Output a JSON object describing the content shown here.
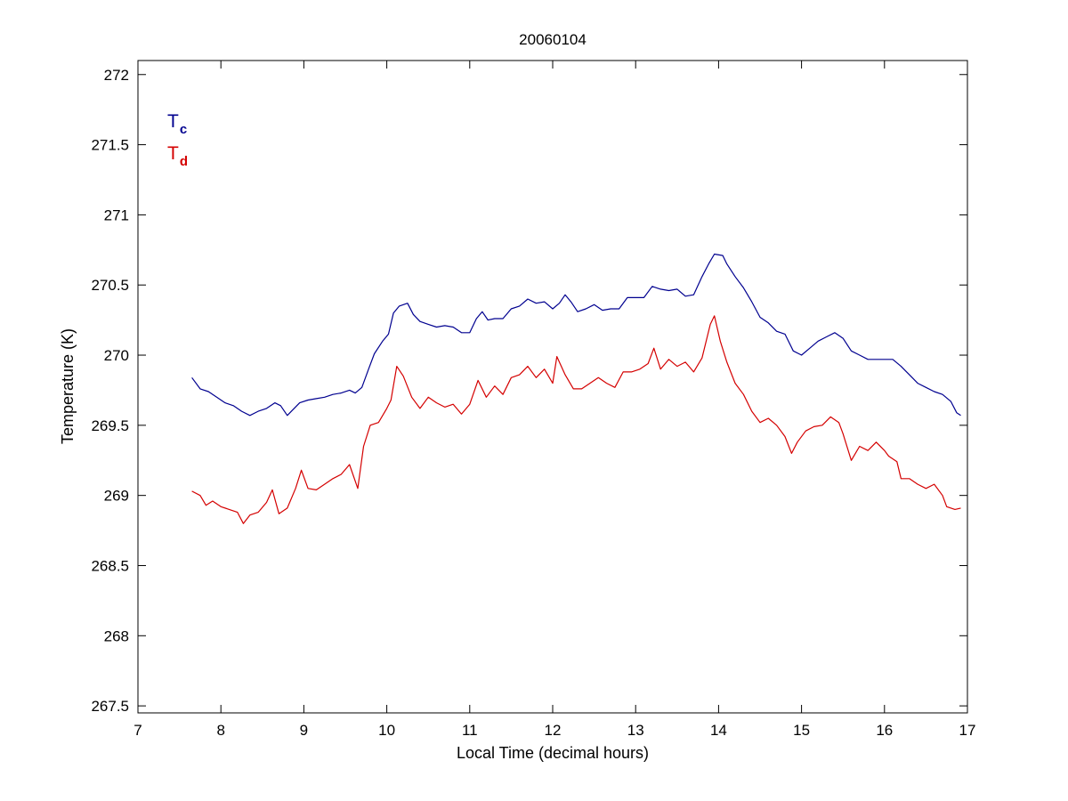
{
  "chart_data": {
    "type": "line",
    "title": "20060104",
    "xlabel": "Local Time (decimal hours)",
    "ylabel": "Temperature (K)",
    "xlim": [
      7,
      17
    ],
    "ylim": [
      267.45,
      272.1
    ],
    "xticks": [
      7,
      8,
      9,
      10,
      11,
      12,
      13,
      14,
      15,
      16,
      17
    ],
    "yticks": [
      267.5,
      268,
      268.5,
      269,
      269.5,
      270,
      270.5,
      271,
      271.5,
      272
    ],
    "grid": false,
    "legend_position": "top-left",
    "series": [
      {
        "name": "T",
        "subscript": "c",
        "color": "#00008f",
        "points": [
          [
            7.65,
            269.84
          ],
          [
            7.75,
            269.76
          ],
          [
            7.85,
            269.74
          ],
          [
            7.95,
            269.7
          ],
          [
            8.05,
            269.66
          ],
          [
            8.15,
            269.64
          ],
          [
            8.25,
            269.6
          ],
          [
            8.35,
            269.57
          ],
          [
            8.45,
            269.6
          ],
          [
            8.55,
            269.62
          ],
          [
            8.65,
            269.66
          ],
          [
            8.72,
            269.64
          ],
          [
            8.8,
            269.57
          ],
          [
            8.85,
            269.6
          ],
          [
            8.95,
            269.66
          ],
          [
            9.05,
            269.68
          ],
          [
            9.15,
            269.69
          ],
          [
            9.25,
            269.7
          ],
          [
            9.35,
            269.72
          ],
          [
            9.45,
            269.73
          ],
          [
            9.55,
            269.75
          ],
          [
            9.62,
            269.73
          ],
          [
            9.7,
            269.77
          ],
          [
            9.78,
            269.9
          ],
          [
            9.85,
            270.01
          ],
          [
            9.95,
            270.1
          ],
          [
            10.02,
            270.15
          ],
          [
            10.08,
            270.3
          ],
          [
            10.15,
            270.35
          ],
          [
            10.25,
            270.37
          ],
          [
            10.32,
            270.29
          ],
          [
            10.4,
            270.24
          ],
          [
            10.5,
            270.22
          ],
          [
            10.6,
            270.2
          ],
          [
            10.7,
            270.21
          ],
          [
            10.8,
            270.2
          ],
          [
            10.9,
            270.16
          ],
          [
            11.0,
            270.16
          ],
          [
            11.08,
            270.26
          ],
          [
            11.15,
            270.31
          ],
          [
            11.22,
            270.25
          ],
          [
            11.3,
            270.26
          ],
          [
            11.4,
            270.26
          ],
          [
            11.5,
            270.33
          ],
          [
            11.6,
            270.35
          ],
          [
            11.7,
            270.4
          ],
          [
            11.8,
            270.37
          ],
          [
            11.9,
            270.38
          ],
          [
            12.0,
            270.33
          ],
          [
            12.08,
            270.37
          ],
          [
            12.15,
            270.43
          ],
          [
            12.22,
            270.38
          ],
          [
            12.3,
            270.31
          ],
          [
            12.4,
            270.33
          ],
          [
            12.5,
            270.36
          ],
          [
            12.6,
            270.32
          ],
          [
            12.7,
            270.33
          ],
          [
            12.8,
            270.33
          ],
          [
            12.9,
            270.41
          ],
          [
            13.0,
            270.41
          ],
          [
            13.1,
            270.41
          ],
          [
            13.2,
            270.49
          ],
          [
            13.3,
            270.47
          ],
          [
            13.4,
            270.46
          ],
          [
            13.5,
            270.47
          ],
          [
            13.6,
            270.42
          ],
          [
            13.7,
            270.43
          ],
          [
            13.8,
            270.56
          ],
          [
            13.88,
            270.65
          ],
          [
            13.95,
            270.72
          ],
          [
            14.05,
            270.71
          ],
          [
            14.1,
            270.65
          ],
          [
            14.2,
            270.56
          ],
          [
            14.3,
            270.48
          ],
          [
            14.4,
            270.38
          ],
          [
            14.5,
            270.27
          ],
          [
            14.6,
            270.23
          ],
          [
            14.7,
            270.17
          ],
          [
            14.8,
            270.15
          ],
          [
            14.9,
            270.03
          ],
          [
            15.0,
            270.0
          ],
          [
            15.1,
            270.05
          ],
          [
            15.2,
            270.1
          ],
          [
            15.3,
            270.13
          ],
          [
            15.4,
            270.16
          ],
          [
            15.5,
            270.12
          ],
          [
            15.6,
            270.03
          ],
          [
            15.7,
            270.0
          ],
          [
            15.8,
            269.97
          ],
          [
            15.9,
            269.97
          ],
          [
            16.0,
            269.97
          ],
          [
            16.1,
            269.97
          ],
          [
            16.2,
            269.92
          ],
          [
            16.3,
            269.86
          ],
          [
            16.4,
            269.8
          ],
          [
            16.5,
            269.77
          ],
          [
            16.6,
            269.74
          ],
          [
            16.7,
            269.72
          ],
          [
            16.8,
            269.67
          ],
          [
            16.87,
            269.59
          ],
          [
            16.92,
            269.57
          ]
        ]
      },
      {
        "name": "T",
        "subscript": "d",
        "color": "#d40000",
        "points": [
          [
            7.65,
            269.03
          ],
          [
            7.75,
            269.0
          ],
          [
            7.82,
            268.93
          ],
          [
            7.9,
            268.96
          ],
          [
            8.0,
            268.92
          ],
          [
            8.1,
            268.9
          ],
          [
            8.2,
            268.88
          ],
          [
            8.27,
            268.8
          ],
          [
            8.35,
            268.86
          ],
          [
            8.45,
            268.88
          ],
          [
            8.55,
            268.95
          ],
          [
            8.62,
            269.04
          ],
          [
            8.7,
            268.87
          ],
          [
            8.8,
            268.91
          ],
          [
            8.9,
            269.05
          ],
          [
            8.97,
            269.18
          ],
          [
            9.05,
            269.05
          ],
          [
            9.15,
            269.04
          ],
          [
            9.25,
            269.08
          ],
          [
            9.35,
            269.12
          ],
          [
            9.45,
            269.15
          ],
          [
            9.55,
            269.22
          ],
          [
            9.65,
            269.05
          ],
          [
            9.72,
            269.35
          ],
          [
            9.8,
            269.5
          ],
          [
            9.9,
            269.52
          ],
          [
            10.0,
            269.62
          ],
          [
            10.05,
            269.68
          ],
          [
            10.12,
            269.92
          ],
          [
            10.2,
            269.85
          ],
          [
            10.3,
            269.7
          ],
          [
            10.4,
            269.62
          ],
          [
            10.5,
            269.7
          ],
          [
            10.6,
            269.66
          ],
          [
            10.7,
            269.63
          ],
          [
            10.8,
            269.65
          ],
          [
            10.9,
            269.58
          ],
          [
            11.0,
            269.65
          ],
          [
            11.1,
            269.82
          ],
          [
            11.2,
            269.7
          ],
          [
            11.3,
            269.78
          ],
          [
            11.4,
            269.72
          ],
          [
            11.5,
            269.84
          ],
          [
            11.6,
            269.86
          ],
          [
            11.7,
            269.92
          ],
          [
            11.8,
            269.84
          ],
          [
            11.9,
            269.9
          ],
          [
            12.0,
            269.8
          ],
          [
            12.05,
            269.99
          ],
          [
            12.15,
            269.86
          ],
          [
            12.25,
            269.76
          ],
          [
            12.35,
            269.76
          ],
          [
            12.45,
            269.8
          ],
          [
            12.55,
            269.84
          ],
          [
            12.65,
            269.8
          ],
          [
            12.75,
            269.77
          ],
          [
            12.85,
            269.88
          ],
          [
            12.95,
            269.88
          ],
          [
            13.05,
            269.9
          ],
          [
            13.15,
            269.94
          ],
          [
            13.22,
            270.05
          ],
          [
            13.3,
            269.9
          ],
          [
            13.4,
            269.97
          ],
          [
            13.5,
            269.92
          ],
          [
            13.6,
            269.95
          ],
          [
            13.7,
            269.88
          ],
          [
            13.8,
            269.98
          ],
          [
            13.9,
            270.22
          ],
          [
            13.95,
            270.28
          ],
          [
            14.02,
            270.1
          ],
          [
            14.1,
            269.95
          ],
          [
            14.2,
            269.8
          ],
          [
            14.3,
            269.72
          ],
          [
            14.4,
            269.6
          ],
          [
            14.5,
            269.52
          ],
          [
            14.6,
            269.55
          ],
          [
            14.7,
            269.5
          ],
          [
            14.8,
            269.42
          ],
          [
            14.88,
            269.3
          ],
          [
            14.95,
            269.38
          ],
          [
            15.05,
            269.46
          ],
          [
            15.15,
            269.49
          ],
          [
            15.25,
            269.5
          ],
          [
            15.35,
            269.56
          ],
          [
            15.45,
            269.52
          ],
          [
            15.5,
            269.44
          ],
          [
            15.6,
            269.25
          ],
          [
            15.7,
            269.35
          ],
          [
            15.8,
            269.32
          ],
          [
            15.9,
            269.38
          ],
          [
            16.0,
            269.32
          ],
          [
            16.05,
            269.28
          ],
          [
            16.15,
            269.24
          ],
          [
            16.2,
            269.12
          ],
          [
            16.3,
            269.12
          ],
          [
            16.4,
            269.08
          ],
          [
            16.5,
            269.05
          ],
          [
            16.6,
            269.08
          ],
          [
            16.7,
            269.0
          ],
          [
            16.75,
            268.92
          ],
          [
            16.85,
            268.9
          ],
          [
            16.92,
            268.91
          ]
        ]
      }
    ]
  }
}
